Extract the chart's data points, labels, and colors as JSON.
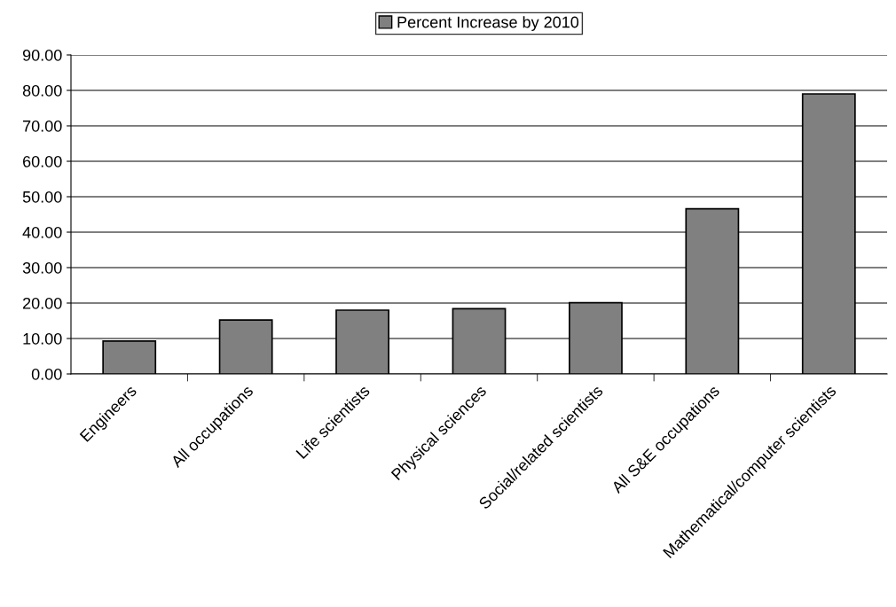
{
  "chart_data": {
    "type": "bar",
    "categories": [
      "Engineers",
      "All occupations",
      "Life scientists",
      "Physical sciences",
      "Social/related scientists",
      "All S&E occupations",
      "Mathematical/computer scientists"
    ],
    "series": [
      {
        "name": "Percent Increase by 2010",
        "color": "#808080",
        "values": [
          9.3,
          15.2,
          18.0,
          18.4,
          20.1,
          46.6,
          79.0
        ]
      }
    ],
    "ylim": [
      0,
      90
    ],
    "yticks": [
      {
        "value": 0,
        "label": "0.00"
      },
      {
        "value": 10,
        "label": "10.00"
      },
      {
        "value": 20,
        "label": "20.00"
      },
      {
        "value": 30,
        "label": "30.00"
      },
      {
        "value": 40,
        "label": "40.00"
      },
      {
        "value": 50,
        "label": "50.00"
      },
      {
        "value": 60,
        "label": "60.00"
      },
      {
        "value": 70,
        "label": "70.00"
      },
      {
        "value": 80,
        "label": "80.00"
      },
      {
        "value": 90,
        "label": "90.00"
      }
    ],
    "grid": "y",
    "legend": "top"
  }
}
